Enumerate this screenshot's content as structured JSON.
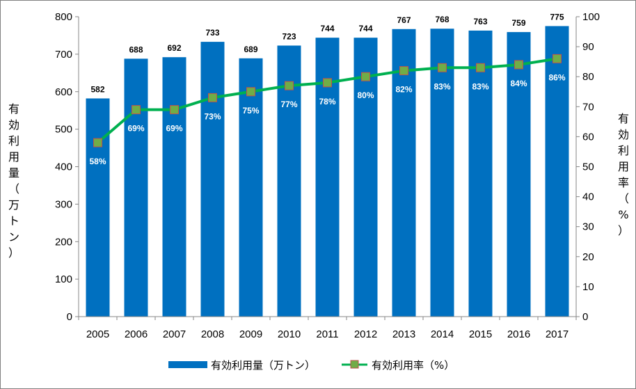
{
  "chart_data": {
    "type": "bar+line",
    "categories": [
      "2005",
      "2006",
      "2007",
      "2008",
      "2009",
      "2010",
      "2011",
      "2012",
      "2013",
      "2014",
      "2015",
      "2016",
      "2017"
    ],
    "series": [
      {
        "name": "有効利用量（万トン）",
        "type": "bar",
        "axis": "left",
        "color": "#0070C0",
        "values": [
          582,
          688,
          692,
          733,
          689,
          723,
          744,
          744,
          767,
          768,
          763,
          759,
          775
        ]
      },
      {
        "name": "有効利用率（%）",
        "type": "line",
        "axis": "right",
        "color": "#00B050",
        "marker_fill": "#70AD47",
        "marker_edge": "#C0504D",
        "values": [
          58,
          69,
          69,
          73,
          75,
          77,
          78,
          80,
          82,
          83,
          83,
          84,
          86
        ],
        "labels": [
          "58%",
          "69%",
          "69%",
          "73%",
          "75%",
          "77%",
          "78%",
          "80%",
          "82%",
          "83%",
          "83%",
          "84%",
          "86%"
        ]
      }
    ],
    "ylabel_left": "有効利用量（万トン）",
    "ylabel_right": "有効利用率（%）",
    "ylim_left": [
      0,
      800
    ],
    "yticks_left": [
      "0",
      "100",
      "200",
      "300",
      "400",
      "500",
      "600",
      "700",
      "800"
    ],
    "ylim_right": [
      0,
      100
    ],
    "yticks_right": [
      "0",
      "10",
      "20",
      "30",
      "40",
      "50",
      "60",
      "70",
      "80",
      "90",
      "100"
    ],
    "grid": false,
    "legend_position": "bottom"
  }
}
